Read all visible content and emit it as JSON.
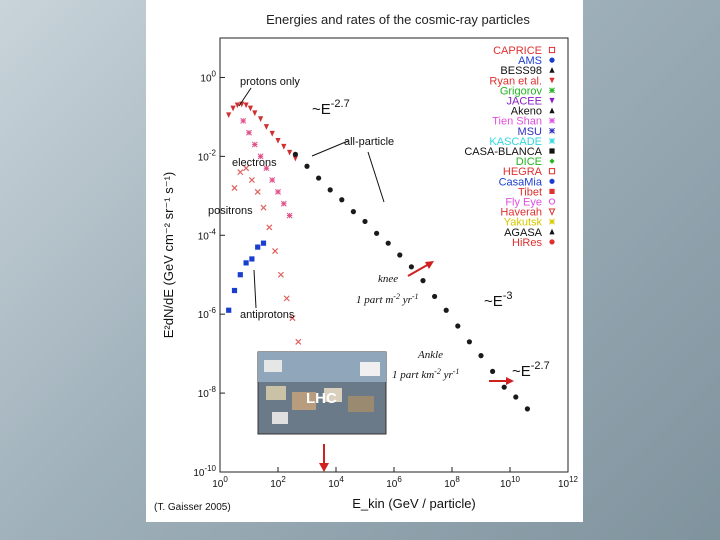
{
  "chart_data": {
    "type": "scatter",
    "title": "Energies and rates of the cosmic-ray particles",
    "xlabel": "E_kin (GeV / particle)",
    "ylabel": "E²dN/dE (GeV cm⁻² sr⁻¹ s⁻¹)",
    "x_scale": "log",
    "y_scale": "log",
    "xlim_log10": [
      0,
      12
    ],
    "ylim_log10": [
      -10,
      1
    ],
    "x_ticks": [
      {
        "exp": 0,
        "base": "10",
        "sup": "0"
      },
      {
        "exp": 2,
        "base": "10",
        "sup": "2"
      },
      {
        "exp": 4,
        "base": "10",
        "sup": "4"
      },
      {
        "exp": 6,
        "base": "10",
        "sup": "6"
      },
      {
        "exp": 8,
        "base": "10",
        "sup": "8"
      },
      {
        "exp": 10,
        "base": "10",
        "sup": "10"
      },
      {
        "exp": 12,
        "base": "10",
        "sup": "12"
      }
    ],
    "y_ticks": [
      {
        "exp": 0,
        "base": "10",
        "sup": "0"
      },
      {
        "exp": -2,
        "base": "10",
        "sup": "-2"
      },
      {
        "exp": -4,
        "base": "10",
        "sup": "-4"
      },
      {
        "exp": -6,
        "base": "10",
        "sup": "-6"
      },
      {
        "exp": -8,
        "base": "10",
        "sup": "-8"
      },
      {
        "exp": -10,
        "base": "10",
        "sup": "-10"
      }
    ],
    "series": [
      {
        "name": "protons only (approx.)",
        "color": "#d23030",
        "marker": "tri-down",
        "points": [
          [
            0.3,
            -0.95
          ],
          [
            0.45,
            -0.78
          ],
          [
            0.6,
            -0.7
          ],
          [
            0.75,
            -0.68
          ],
          [
            0.9,
            -0.7
          ],
          [
            1.05,
            -0.78
          ],
          [
            1.2,
            -0.9
          ],
          [
            1.4,
            -1.05
          ],
          [
            1.6,
            -1.25
          ],
          [
            1.8,
            -1.42
          ],
          [
            2.0,
            -1.6
          ],
          [
            2.2,
            -1.75
          ],
          [
            2.4,
            -1.9
          ],
          [
            2.6,
            -2.05
          ]
        ]
      },
      {
        "name": "all-particle (approx.)",
        "color": "#1a1a1a",
        "marker": "dot",
        "points": [
          [
            2.6,
            -1.95
          ],
          [
            3.0,
            -2.25
          ],
          [
            3.4,
            -2.55
          ],
          [
            3.8,
            -2.85
          ],
          [
            4.2,
            -3.1
          ],
          [
            4.6,
            -3.4
          ],
          [
            5.0,
            -3.65
          ],
          [
            5.4,
            -3.95
          ],
          [
            5.8,
            -4.2
          ],
          [
            6.2,
            -4.5
          ],
          [
            6.6,
            -4.8
          ],
          [
            7.0,
            -5.15
          ],
          [
            7.4,
            -5.55
          ],
          [
            7.8,
            -5.9
          ],
          [
            8.2,
            -6.3
          ],
          [
            8.6,
            -6.7
          ],
          [
            9.0,
            -7.05
          ],
          [
            9.4,
            -7.45
          ],
          [
            9.8,
            -7.85
          ],
          [
            10.2,
            -8.1
          ],
          [
            10.6,
            -8.4
          ]
        ]
      },
      {
        "name": "electrons (approx.)",
        "color": "#e0508a",
        "marker": "star",
        "points": [
          [
            0.8,
            -1.1
          ],
          [
            1.0,
            -1.4
          ],
          [
            1.2,
            -1.7
          ],
          [
            1.4,
            -2.0
          ],
          [
            1.6,
            -2.3
          ],
          [
            1.8,
            -2.6
          ],
          [
            2.0,
            -2.9
          ],
          [
            2.2,
            -3.2
          ],
          [
            2.4,
            -3.5
          ]
        ]
      },
      {
        "name": "positrons (approx.)",
        "color": "#e06060",
        "marker": "cross",
        "points": [
          [
            0.5,
            -2.8
          ],
          [
            0.7,
            -2.4
          ],
          [
            0.9,
            -2.3
          ],
          [
            1.1,
            -2.6
          ],
          [
            1.3,
            -2.9
          ],
          [
            1.5,
            -3.3
          ],
          [
            1.7,
            -3.8
          ],
          [
            1.9,
            -4.4
          ],
          [
            2.1,
            -5.0
          ],
          [
            2.3,
            -5.6
          ],
          [
            2.5,
            -6.1
          ],
          [
            2.7,
            -6.7
          ]
        ]
      },
      {
        "name": "antiprotons (approx.)",
        "color": "#1a3fd0",
        "marker": "square",
        "points": [
          [
            0.3,
            -5.9
          ],
          [
            0.5,
            -5.4
          ],
          [
            0.7,
            -5.0
          ],
          [
            0.9,
            -4.7
          ],
          [
            1.1,
            -4.6
          ],
          [
            1.3,
            -4.3
          ],
          [
            1.5,
            -4.2
          ]
        ]
      }
    ],
    "annotations": {
      "protons_only": "protons only",
      "all_particle": "all-particle",
      "electrons": "electrons",
      "positrons": "positrons",
      "antiprotons": "antiprotons",
      "slope_1": {
        "base": "~E",
        "sup": "-2.7"
      },
      "slope_2": {
        "base": "~E",
        "sup": "-3"
      },
      "slope_3": {
        "base": "~E",
        "sup": "-2.7"
      },
      "knee": "knee",
      "knee_rate": {
        "base": "1 part m",
        "sup1": "-2",
        "mid": " yr",
        "sup2": "-1"
      },
      "ankle": "Ankle",
      "ankle_rate": {
        "base": "1 part km",
        "sup1": "-2",
        "mid": " yr",
        "sup2": "-1"
      },
      "lhc": "LHC",
      "citation": "(T. Gaisser 2005)"
    },
    "legend": {
      "placement": "top-right",
      "items": [
        {
          "label": "CAPRICE",
          "color": "#e03030",
          "marker": "square-open"
        },
        {
          "label": "AMS",
          "color": "#1a3fd0",
          "marker": "dot"
        },
        {
          "label": "BESS98",
          "color": "#111111",
          "marker": "triangle"
        },
        {
          "label": "Ryan et al.",
          "color": "#e03030",
          "marker": "tri-down"
        },
        {
          "label": "Grigorov",
          "color": "#22b422",
          "marker": "star"
        },
        {
          "label": "JACEE",
          "color": "#8a1fc8",
          "marker": "tri-down"
        },
        {
          "label": "Akeno",
          "color": "#111111",
          "marker": "triangle"
        },
        {
          "label": "Tien Shan",
          "color": "#e050e0",
          "marker": "star"
        },
        {
          "label": "MSU",
          "color": "#3030c0",
          "marker": "star"
        },
        {
          "label": "KASCADE",
          "color": "#30d8e0",
          "marker": "star"
        },
        {
          "label": "CASA-BLANCA",
          "color": "#111111",
          "marker": "square"
        },
        {
          "label": "DICE",
          "color": "#22b422",
          "marker": "diamond"
        },
        {
          "label": "HEGRA",
          "color": "#e03030",
          "marker": "square-open"
        },
        {
          "label": "CasaMia",
          "color": "#1a3fd0",
          "marker": "dot"
        },
        {
          "label": "Tibet",
          "color": "#e03030",
          "marker": "square"
        },
        {
          "label": "Fly Eye",
          "color": "#e050e0",
          "marker": "circle-open"
        },
        {
          "label": "Haverah",
          "color": "#e03030",
          "marker": "tri-down-open"
        },
        {
          "label": "Yakutsk",
          "color": "#d8c800",
          "marker": "star"
        },
        {
          "label": "AGASA",
          "color": "#111111",
          "marker": "triangle"
        },
        {
          "label": "HiRes",
          "color": "#e03030",
          "marker": "dot"
        }
      ]
    }
  }
}
